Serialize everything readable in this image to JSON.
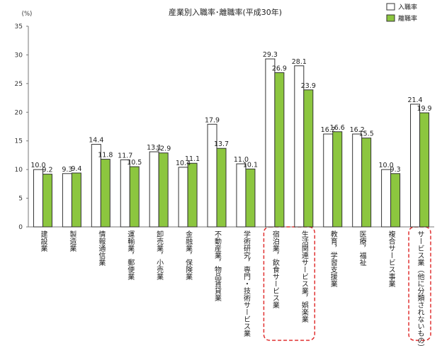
{
  "chart_data": {
    "type": "bar",
    "title": "産業別入職率･離職率(平成30年)",
    "ylabel": "(%)",
    "ylim": [
      0,
      35
    ],
    "yticks": [
      0,
      5,
      10,
      15,
      20,
      25,
      30,
      35
    ],
    "categories": [
      "建設業",
      "製造業",
      "情報通信業",
      "運輸業，郵便業",
      "卸売業，小売業",
      "金融業，保険業",
      "不動産業，物品賃貸業",
      "学術研究，専門・技術サービス業",
      "宿泊業，飲食サービス業",
      "生活関連サービス業，娯楽業",
      "教育，学習支援業",
      "医療，福祉",
      "複合サービス事業",
      "サービス業（他に分類されないもの）"
    ],
    "series": [
      {
        "name": "入職率",
        "color": "#ffffff",
        "values": [
          10.0,
          9.3,
          14.4,
          11.7,
          13.1,
          10.4,
          17.9,
          11.0,
          29.3,
          28.1,
          16.2,
          16.2,
          10.0,
          21.4
        ]
      },
      {
        "name": "離職率",
        "color": "#8cc63f",
        "values": [
          9.2,
          9.4,
          11.8,
          10.5,
          12.9,
          11.1,
          13.7,
          10.1,
          26.9,
          23.9,
          16.6,
          15.5,
          9.3,
          19.9
        ]
      }
    ],
    "legend": "top-right",
    "grid": false,
    "highlighted_categories": [
      8,
      9,
      13
    ],
    "highlight_color": "#e03030"
  }
}
